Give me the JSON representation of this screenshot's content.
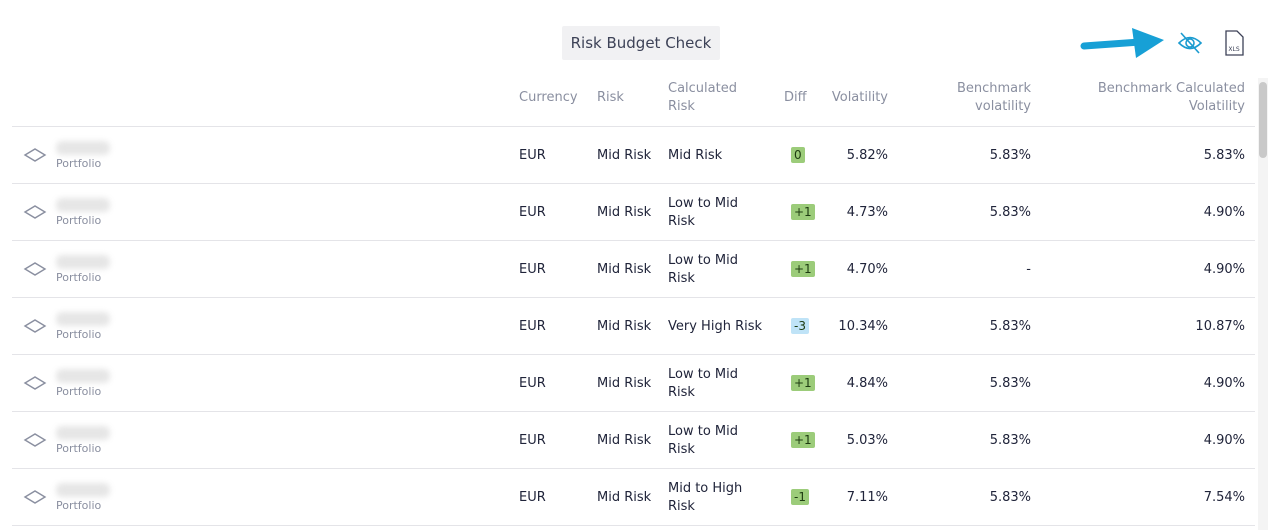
{
  "header": {
    "title": "Risk Budget Check",
    "export_label": "XLS"
  },
  "table": {
    "columns": [
      "Currency",
      "Risk",
      "Calculated Risk",
      "Diff",
      "Volatility",
      "Benchmark volatility",
      "Benchmark Calculated Volatility"
    ],
    "rows": [
      {
        "type": "Portfolio",
        "currency": "EUR",
        "risk": "Mid Risk",
        "calculated_risk": "Mid Risk",
        "diff": "0",
        "diff_color": "#9ccc7a",
        "volatility": "5.82%",
        "benchmark_volatility": "5.83%",
        "benchmark_calculated_volatility": "5.83%"
      },
      {
        "type": "Portfolio",
        "currency": "EUR",
        "risk": "Mid Risk",
        "calculated_risk": "Low to Mid Risk",
        "diff": "+1",
        "diff_color": "#9ccc7a",
        "volatility": "4.73%",
        "benchmark_volatility": "5.83%",
        "benchmark_calculated_volatility": "4.90%"
      },
      {
        "type": "Portfolio",
        "currency": "EUR",
        "risk": "Mid Risk",
        "calculated_risk": "Low to Mid Risk",
        "diff": "+1",
        "diff_color": "#9ccc7a",
        "volatility": "4.70%",
        "benchmark_volatility": "-",
        "benchmark_calculated_volatility": "4.90%"
      },
      {
        "type": "Portfolio",
        "currency": "EUR",
        "risk": "Mid Risk",
        "calculated_risk": "Very High Risk",
        "diff": "-3",
        "diff_color": "#bfe3f7",
        "volatility": "10.34%",
        "benchmark_volatility": "5.83%",
        "benchmark_calculated_volatility": "10.87%"
      },
      {
        "type": "Portfolio",
        "currency": "EUR",
        "risk": "Mid Risk",
        "calculated_risk": "Low to Mid Risk",
        "diff": "+1",
        "diff_color": "#9ccc7a",
        "volatility": "4.84%",
        "benchmark_volatility": "5.83%",
        "benchmark_calculated_volatility": "4.90%"
      },
      {
        "type": "Portfolio",
        "currency": "EUR",
        "risk": "Mid Risk",
        "calculated_risk": "Low to Mid Risk",
        "diff": "+1",
        "diff_color": "#9ccc7a",
        "volatility": "5.03%",
        "benchmark_volatility": "5.83%",
        "benchmark_calculated_volatility": "4.90%"
      },
      {
        "type": "Portfolio",
        "currency": "EUR",
        "risk": "Mid Risk",
        "calculated_risk": "Mid to High Risk",
        "diff": "-1",
        "diff_color": "#9ccc7a",
        "volatility": "7.11%",
        "benchmark_volatility": "5.83%",
        "benchmark_calculated_volatility": "7.54%"
      }
    ]
  }
}
